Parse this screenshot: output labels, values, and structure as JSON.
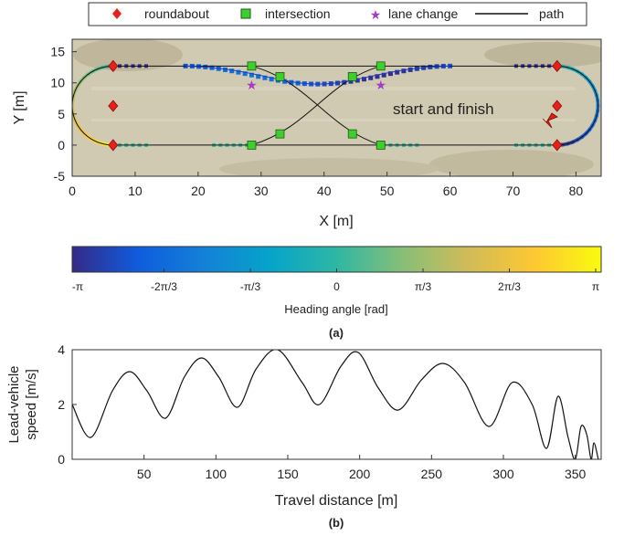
{
  "chart_data": [
    {
      "type": "scatter",
      "panel_label": "(a)",
      "xlabel": "X [m]",
      "ylabel": "Y [m]",
      "xlim": [
        0,
        84
      ],
      "ylim": [
        -5,
        17
      ],
      "xticks": [
        0,
        10,
        20,
        30,
        40,
        50,
        60,
        70,
        80
      ],
      "yticks": [
        -5,
        0,
        5,
        10,
        15
      ],
      "background": "aerial photograph of test track",
      "legend": {
        "placement": "top",
        "entries": [
          {
            "label": "roundabout",
            "marker": "diamond",
            "color": "#e8201a"
          },
          {
            "label": "intersection",
            "marker": "square",
            "color": "#3ecf2e"
          },
          {
            "label": "lane change",
            "marker": "star",
            "color": "#a63cc4"
          },
          {
            "label": "path",
            "marker": "line",
            "color": "#111111"
          }
        ]
      },
      "series": [
        {
          "name": "roundabout",
          "points": [
            [
              6.5,
              12.7
            ],
            [
              6.5,
              6.3
            ],
            [
              6.5,
              0
            ],
            [
              77,
              12.7
            ],
            [
              77,
              6.3
            ],
            [
              77,
              0
            ]
          ]
        },
        {
          "name": "intersection",
          "points": [
            [
              28.5,
              12.7
            ],
            [
              33,
              11
            ],
            [
              44.5,
              11
            ],
            [
              49,
              12.7
            ],
            [
              28.5,
              0
            ],
            [
              33,
              1.8
            ],
            [
              44.5,
              1.8
            ],
            [
              49,
              0
            ]
          ]
        },
        {
          "name": "lane change",
          "points": [
            [
              28.5,
              9.7
            ],
            [
              49,
              9.7
            ]
          ]
        }
      ],
      "annotations": [
        {
          "text": "start and finish",
          "x": 67.5,
          "y": 4.5
        }
      ],
      "colorbar": {
        "label": "Heading angle [rad]",
        "ticks": [
          "-π",
          "-2π/3",
          "-π/3",
          "0",
          "π/3",
          "2π/3",
          "π"
        ],
        "colormap": [
          "#352a87",
          "#0f5cdd",
          "#1481d6",
          "#06a4ca",
          "#2eb7a4",
          "#87bf77",
          "#d1bb59",
          "#fec832",
          "#f9fb0e"
        ]
      }
    },
    {
      "type": "line",
      "panel_label": "(b)",
      "xlabel": "Travel distance [m]",
      "ylabel": "Lead-vehicle speed [m/s]",
      "ylabel_lines": [
        "Lead-vehicle",
        "speed [m/s]"
      ],
      "xlim": [
        0,
        368
      ],
      "ylim": [
        0,
        4
      ],
      "xticks": [
        50,
        100,
        150,
        200,
        250,
        300,
        350
      ],
      "yticks": [
        0,
        2,
        4
      ],
      "series": [
        {
          "x": [
            0,
            13,
            28,
            40,
            52,
            65,
            78,
            90,
            102,
            115,
            128,
            143,
            160,
            172,
            187,
            199,
            213,
            227,
            243,
            258,
            273,
            290,
            306,
            320,
            330,
            338,
            345,
            350,
            354,
            358,
            361,
            363,
            366
          ],
          "y": [
            2.0,
            0.8,
            2.5,
            3.2,
            2.5,
            1.5,
            3.0,
            3.7,
            3.0,
            1.9,
            3.3,
            4.0,
            2.8,
            2.0,
            3.4,
            3.9,
            2.6,
            1.8,
            2.9,
            3.5,
            2.8,
            1.2,
            2.8,
            2.0,
            0.4,
            2.3,
            0.8,
            0.0,
            1.2,
            0.9,
            0.0,
            0.6,
            0.0
          ]
        }
      ]
    }
  ]
}
